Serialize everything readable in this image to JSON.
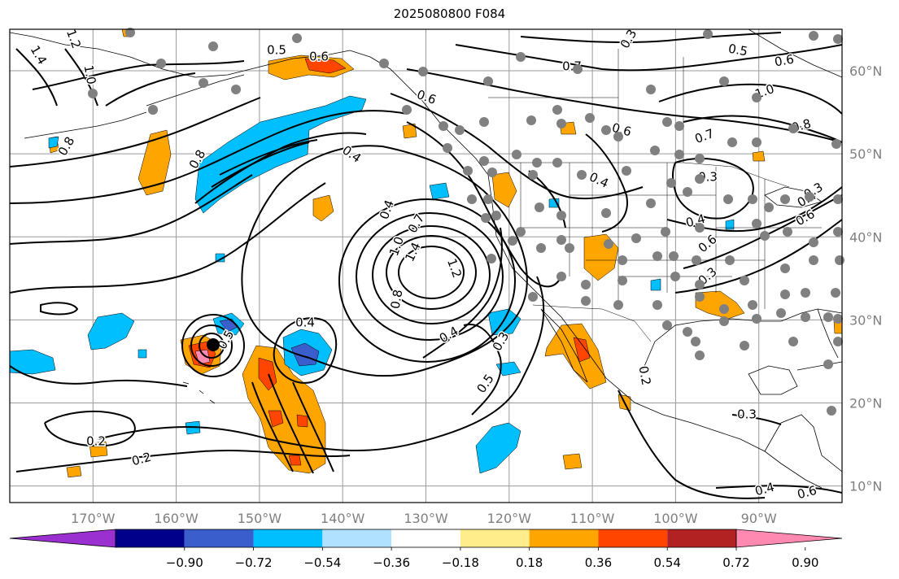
{
  "title": "2025080800 F084",
  "map": {
    "lon_min": -180,
    "lon_max": -80,
    "lat_min": 8,
    "lat_max": 65,
    "lon_labels": [
      "170°W",
      "160°W",
      "150°W",
      "140°W",
      "130°W",
      "120°W",
      "110°W",
      "100°W",
      "90°W"
    ],
    "lon_values": [
      -170,
      -160,
      -150,
      -140,
      -130,
      -120,
      -110,
      -100,
      -90
    ],
    "lat_labels": [
      "10°N",
      "20°N",
      "30°N",
      "40°N",
      "50°N",
      "60°N"
    ],
    "lat_values": [
      10,
      20,
      30,
      40,
      50,
      60
    ],
    "contour_labels": [
      "1.4",
      "1.2",
      "1.0",
      "0.8",
      "0.5",
      "0.6",
      "0.7",
      "0.6",
      "0.8",
      "0.6",
      "0.4",
      "0.4",
      "0.4",
      "1.0",
      "0.7",
      "1.4",
      "1.2",
      "0.8",
      "0.4",
      "0.5",
      "0.3",
      "0.4",
      "0.5",
      "0.2",
      "0.2",
      "0.7",
      "0.4",
      "0.3",
      "0.6",
      "0.8",
      "1.0",
      "0.6",
      "0.5",
      "0.3",
      "0.4",
      "0.6",
      "0.3",
      "0.3",
      "0.2",
      "0.4",
      "0.6",
      "0.3"
    ],
    "storm_marker": "tropical-cyclone-center"
  },
  "colorbar": {
    "tick_labels": [
      "−0.90",
      "−0.72",
      "−0.54",
      "−0.36",
      "−0.18",
      "0.18",
      "0.36",
      "0.54",
      "0.72",
      "0.90"
    ],
    "colors": [
      "#9b30d0",
      "#00008b",
      "#3a5fcd",
      "#00bfff",
      "#b0e2ff",
      "#ffffff",
      "#ffec8b",
      "#ffa500",
      "#ff4500",
      "#b22222",
      "#ff89b0"
    ]
  }
}
